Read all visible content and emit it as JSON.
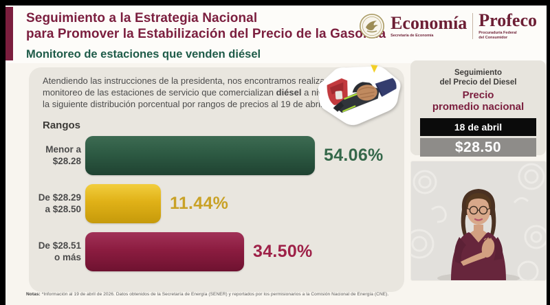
{
  "header": {
    "title_lines": [
      "Seguimiento a la Estrategia Nacional",
      "para Promover la Estabilización del Precio de la Gasolina"
    ],
    "subtitle": "Monitoreo de estaciones que venden diésel",
    "logos": {
      "economia": {
        "name": "Economía",
        "sub": "Secretaría de Economía"
      },
      "profeco": {
        "name": "Profeco",
        "sub_line1": "Procuraduría Federal",
        "sub_line2": "del Consumidor"
      }
    }
  },
  "intro": {
    "text_before_bold": "Atendiendo las instrucciones de la presidenta, nos encontramos realizando un monitoreo de las estaciones de servicio que comercializan ",
    "bold": "diésel",
    "text_after_bold": " a nivel nacional, con la siguiente distribución porcentual por rangos de precios al 19 de abril de 2026:"
  },
  "chart_data": {
    "type": "bar",
    "orientation": "horizontal",
    "title": "Rangos",
    "categories": [
      "Menor a $28.28",
      "De $28.29 a $28.50",
      "De $28.51 o más"
    ],
    "values": [
      54.06,
      11.44,
      34.5
    ],
    "value_labels": [
      "54.06%",
      "11.44%",
      "34.50%"
    ],
    "unit": "%",
    "xlim": [
      0,
      60
    ],
    "grid": false,
    "legend": "none",
    "rows": [
      {
        "label_line1": "Menor a",
        "label_line2": "$28.28",
        "value": 54.06,
        "value_label": "54.06%",
        "color": "#2d5a43",
        "color_light": "#3d6b52",
        "color_dark": "#1f4231",
        "text_color": "#35684a"
      },
      {
        "label_line1": "De $28.29",
        "label_line2": "a $28.50",
        "value": 11.44,
        "value_label": "11.44%",
        "color": "#e0b117",
        "color_light": "#f2ce3e",
        "color_dark": "#c69a0b",
        "text_color": "#c9a227"
      },
      {
        "label_line1": "De $28.51",
        "label_line2": "o más",
        "value": 34.5,
        "value_label": "34.50%",
        "color": "#8c1c40",
        "color_light": "#a13258",
        "color_dark": "#6e1230",
        "text_color": "#9e2148"
      }
    ]
  },
  "price_card": {
    "heading_line1": "Seguimiento",
    "heading_line2": "del Precio del Diesel",
    "subheading_line1": "Precio",
    "subheading_line2": "promedio nacional",
    "date": "18 de abril",
    "price": "$28.50"
  },
  "footer": {
    "label": "Notas:",
    "text": " *Información al 19 de abril de 2026. Datos obtenidos de la Secretaría de Energía (SENER) y reportados por los permisionarios a la Comisión Nacional de Energía (CNE)."
  },
  "colors": {
    "brand_maroon": "#7b1e3e",
    "brand_green": "#1e5b49",
    "panel_gray": "#e9e6df",
    "date_bar_black": "#0b0b0b",
    "price_bar_gray": "#8e8c89",
    "logo_maroon": "#6d1f35"
  }
}
